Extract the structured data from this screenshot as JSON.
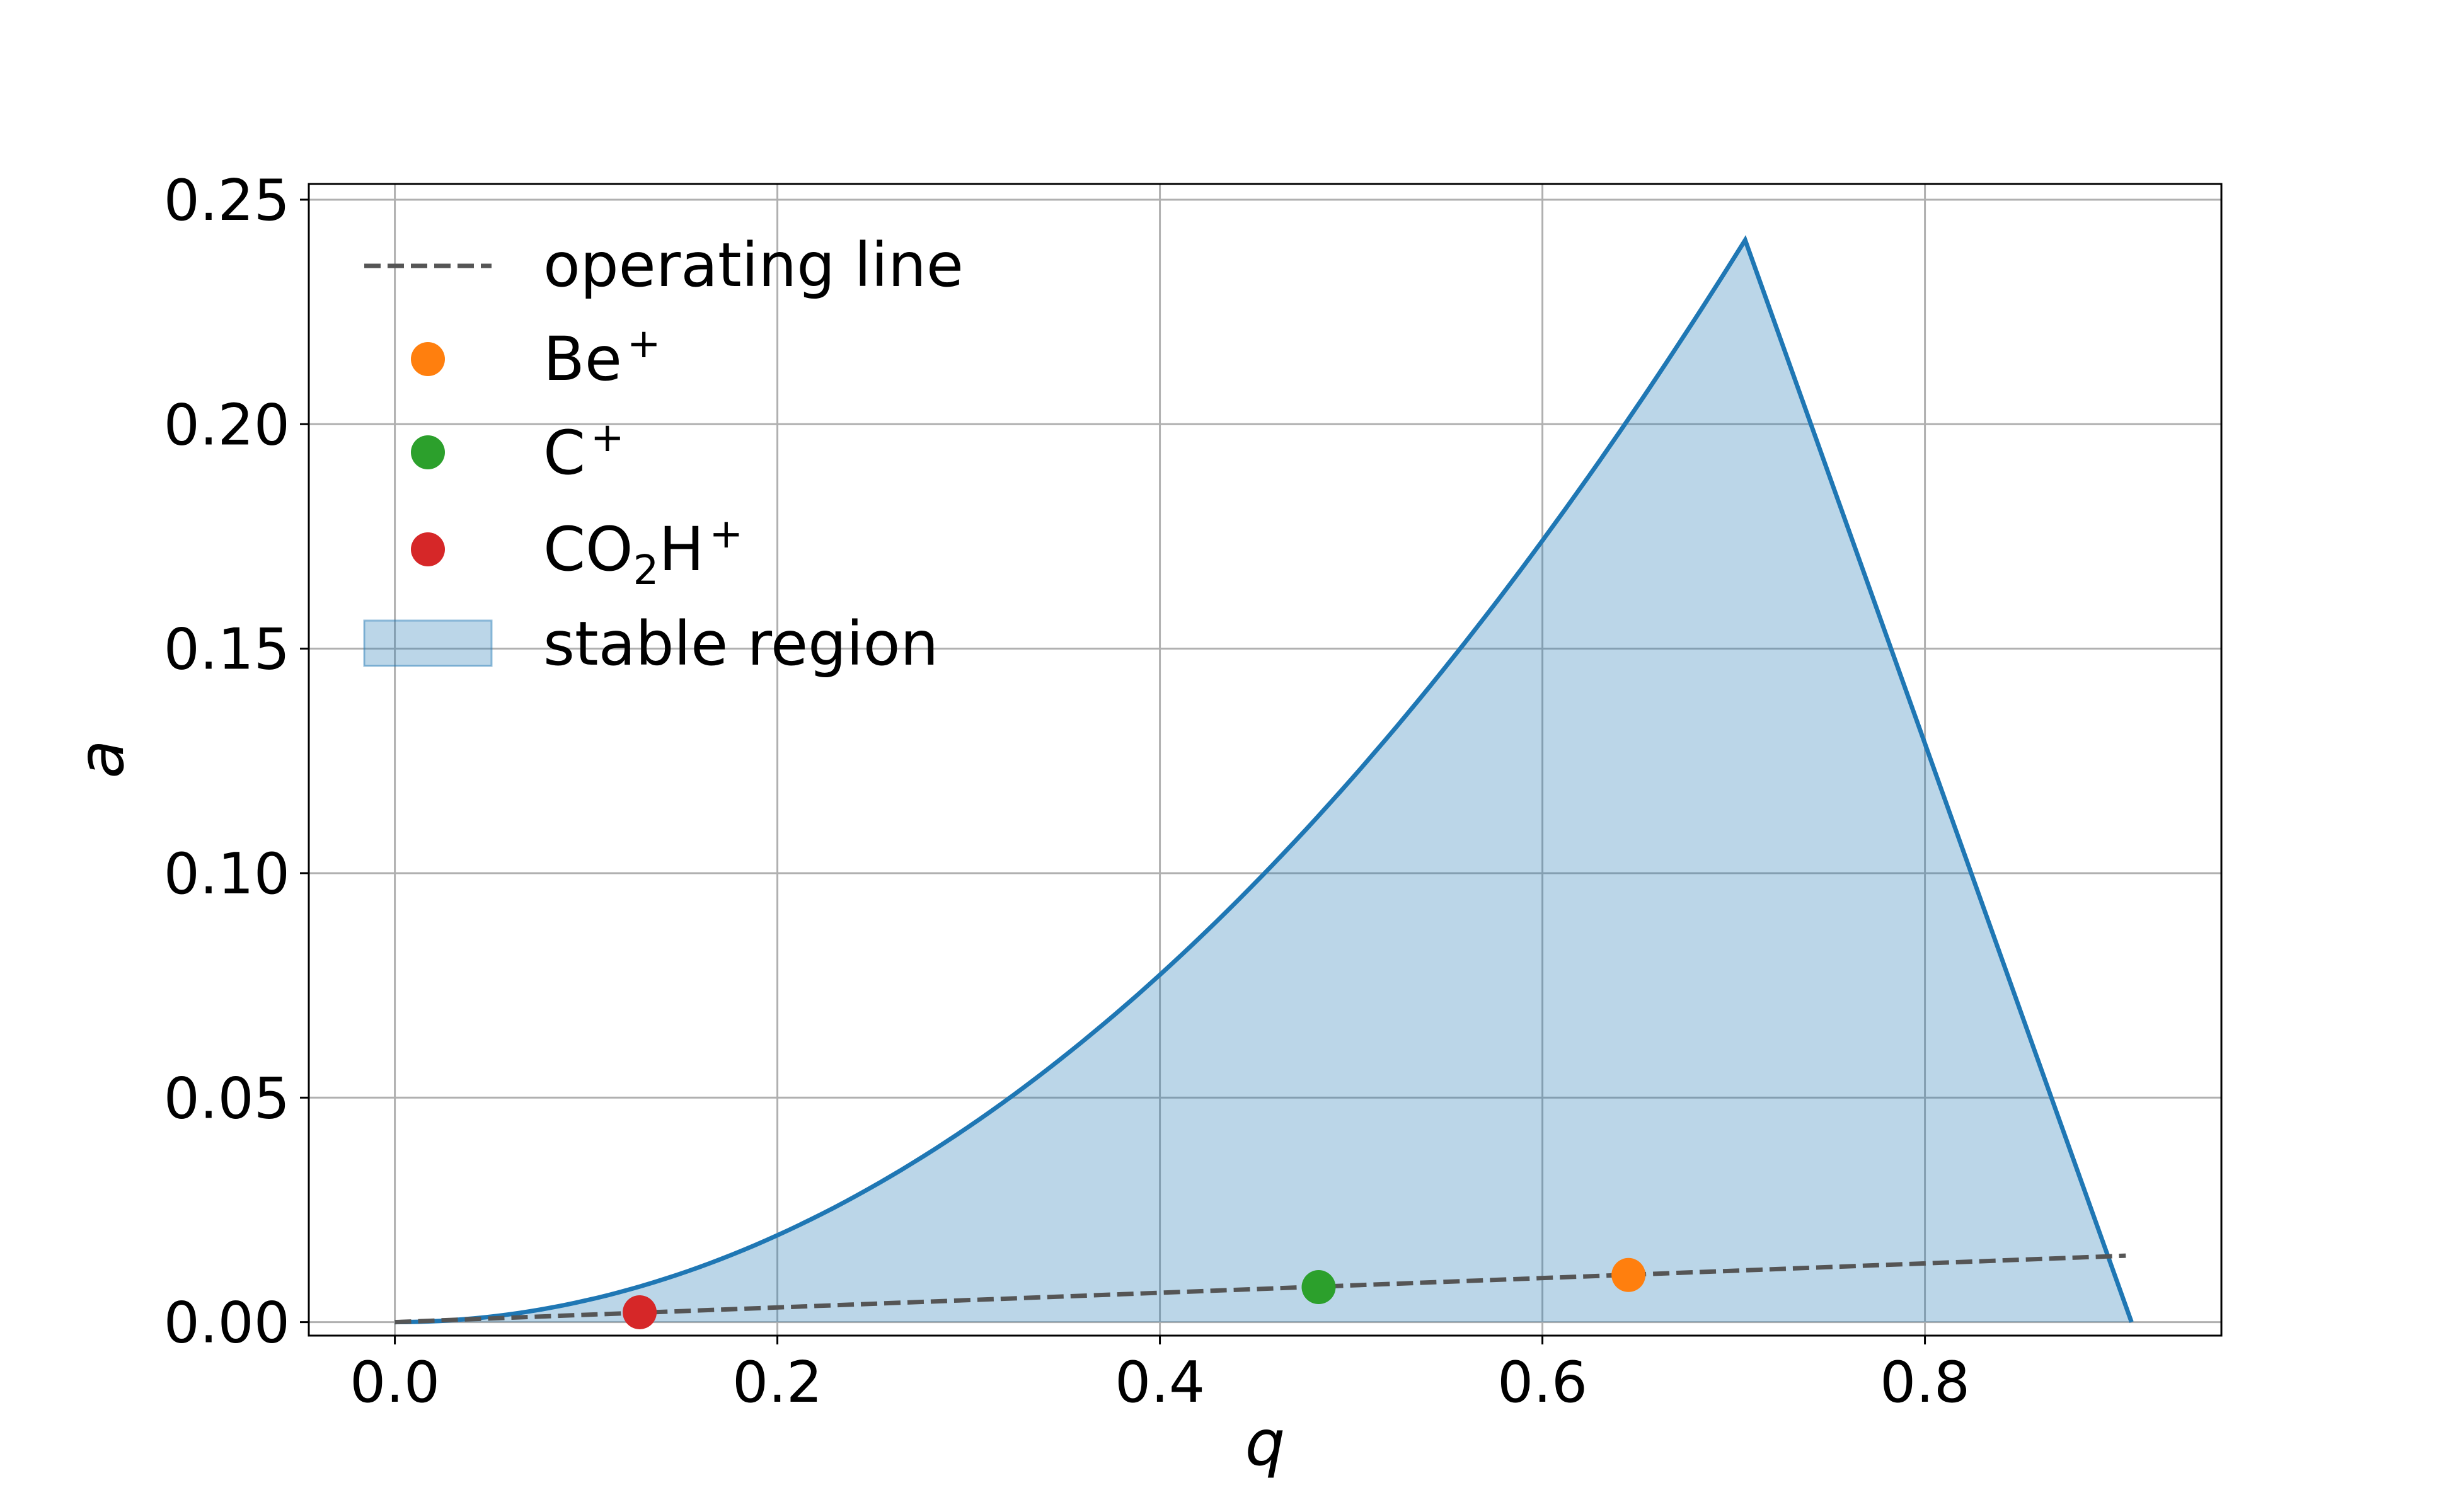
{
  "chart_data": {
    "type": "line",
    "xlabel": "q",
    "ylabel": "a",
    "xlim": [
      -0.045,
      0.955
    ],
    "ylim": [
      -0.003,
      0.2535
    ],
    "x_ticks": [
      "0.0",
      "0.2",
      "0.4",
      "0.6",
      "0.8"
    ],
    "x_tick_values": [
      0.0,
      0.2,
      0.4,
      0.6,
      0.8
    ],
    "y_ticks": [
      "0.00",
      "0.05",
      "0.10",
      "0.15",
      "0.20",
      "0.25"
    ],
    "y_tick_values": [
      0.0,
      0.05,
      0.1,
      0.15,
      0.2,
      0.25
    ],
    "grid": true,
    "legend_position": "upper-left",
    "colors": {
      "boundary": "#1f77b4",
      "fill": "#1f77b4",
      "fill_opacity": 0.3,
      "operating_line": "#555555",
      "grid": "#b0b0b0"
    },
    "series": [
      {
        "name": "stable region",
        "kind": "area",
        "color": "#1f77b4",
        "x": [
          0.0,
          0.05,
          0.1,
          0.15,
          0.2,
          0.25,
          0.3,
          0.35,
          0.4,
          0.45,
          0.5,
          0.55,
          0.6,
          0.65,
          0.706,
          0.75,
          0.8,
          0.85,
          0.908
        ],
        "y": [
          0.0,
          0.0012,
          0.0049,
          0.0111,
          0.0196,
          0.0304,
          0.0433,
          0.0584,
          0.0754,
          0.0944,
          0.115,
          0.1373,
          0.161,
          0.1863,
          0.241,
          0.1875,
          0.1268,
          0.0661,
          0.0
        ]
      },
      {
        "name": "operating line",
        "kind": "line",
        "style": "dashed",
        "color": "#555555",
        "x": [
          0.0,
          0.905
        ],
        "y": [
          0.0,
          0.0148
        ]
      },
      {
        "name_parts": [
          "Be",
          "+"
        ],
        "kind": "point",
        "color": "#ff7f0e",
        "x": [
          0.645
        ],
        "y": [
          0.0105
        ]
      },
      {
        "name_parts": [
          "C",
          "+"
        ],
        "kind": "point",
        "color": "#2ca02c",
        "x": [
          0.483
        ],
        "y": [
          0.0078
        ]
      },
      {
        "name_parts": [
          "CO",
          "2",
          "H",
          "+"
        ],
        "kind": "point",
        "color": "#d62728",
        "x": [
          0.128
        ],
        "y": [
          0.0022
        ]
      }
    ]
  }
}
